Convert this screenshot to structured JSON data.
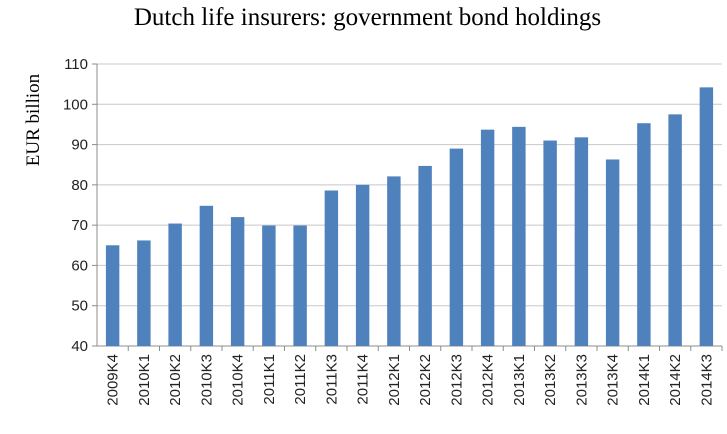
{
  "chart_data": {
    "type": "bar",
    "title": "Dutch life insurers: government bond holdings",
    "xlabel": "",
    "ylabel": "EUR billion",
    "ylim": [
      40,
      110
    ],
    "yticks": [
      40,
      50,
      60,
      70,
      80,
      90,
      100,
      110
    ],
    "grid": true,
    "legend": "none",
    "bar_color": "#4f81bd",
    "categories": [
      "2009K4",
      "2010K1",
      "2010K2",
      "2010K3",
      "2010K4",
      "2011K1",
      "2011K2",
      "2011K3",
      "2011K4",
      "2012K1",
      "2012K2",
      "2012K3",
      "2012K4",
      "2013K1",
      "2013K2",
      "2013K3",
      "2013K4",
      "2014K1",
      "2014K2",
      "2014K3"
    ],
    "values": [
      65,
      66.2,
      70.4,
      74.8,
      72,
      69.9,
      69.9,
      78.6,
      80,
      82.1,
      84.7,
      89,
      93.7,
      94.4,
      91,
      91.8,
      86.3,
      95.3,
      97.5,
      104.2
    ]
  }
}
